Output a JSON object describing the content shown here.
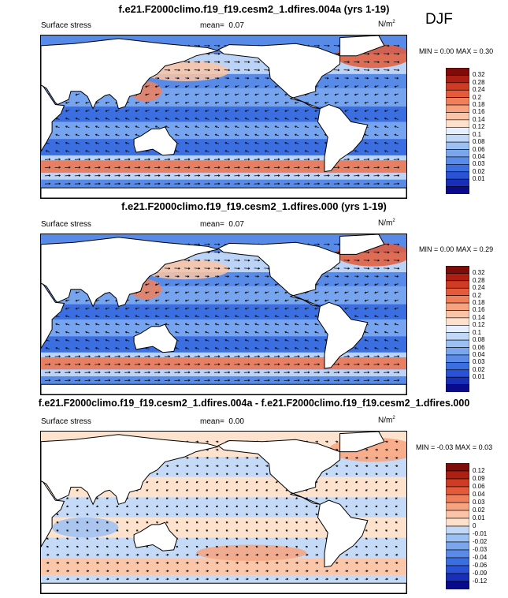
{
  "season": "DJF",
  "colors": {
    "positive_scale": [
      "#0a0a8c",
      "#1a2fb8",
      "#2a52d6",
      "#3b6fe0",
      "#5a8be8",
      "#7aa6ee",
      "#9bc0f3",
      "#c2d8f7",
      "#e6efff",
      "#fde1cc",
      "#fbc4a6",
      "#f7a37f",
      "#f0805c",
      "#e45a3a",
      "#cf3b23",
      "#ad1f13",
      "#7e0c08"
    ],
    "diff_scale": [
      "#0a0a8c",
      "#1a2fb8",
      "#2a52d6",
      "#3b6fe0",
      "#5a8be8",
      "#7aa6ee",
      "#9bc0f3",
      "#c2d8f7",
      "#fde1cc",
      "#fbc4a6",
      "#f7a37f",
      "#f0805c",
      "#e45a3a",
      "#cf3b23",
      "#ad1f13",
      "#7e0c08"
    ]
  },
  "chart_data": [
    {
      "type": "heatmap",
      "title": "f.e21.F2000climo.f19_f19.cesm2_1.dfires.004a (yrs 1-19)",
      "left_label": "Surface stress",
      "mean_label": "mean=",
      "mean_value": "0.07",
      "units": "N/m",
      "units_exp": "2",
      "min_label": "MIN =",
      "min_value": "0.00",
      "max_label": "MAX =",
      "max_value": "0.30",
      "colorbar_ticks": [
        "0.32",
        "0.28",
        "0.24",
        "0.2",
        "0.18",
        "0.16",
        "0.14",
        "0.12",
        "0.1",
        "0.08",
        "0.06",
        "0.04",
        "0.03",
        "0.02",
        "0.01"
      ],
      "overlay": "wind stress vectors"
    },
    {
      "type": "heatmap",
      "title": "f.e21.F2000climo.f19_f19.cesm2_1.dfires.000 (yrs 1-19)",
      "left_label": "Surface stress",
      "mean_label": "mean=",
      "mean_value": "0.07",
      "units": "N/m",
      "units_exp": "2",
      "min_label": "MIN =",
      "min_value": "0.00",
      "max_label": "MAX =",
      "max_value": "0.29",
      "colorbar_ticks": [
        "0.32",
        "0.28",
        "0.24",
        "0.2",
        "0.18",
        "0.16",
        "0.14",
        "0.12",
        "0.1",
        "0.08",
        "0.06",
        "0.04",
        "0.03",
        "0.02",
        "0.01"
      ],
      "overlay": "wind stress vectors"
    },
    {
      "type": "heatmap",
      "title": "f.e21.F2000climo.f19_f19.cesm2_1.dfires.004a - f.e21.F2000climo.f19_f19.cesm2_1.dfires.000",
      "left_label": "Surface stress",
      "mean_label": "mean=",
      "mean_value": "0.00",
      "units": "N/m",
      "units_exp": "2",
      "min_label": "MIN =",
      "min_value": "-0.03",
      "max_label": "MAX =",
      "max_value": "0.03",
      "colorbar_ticks": [
        "0.12",
        "0.09",
        "0.06",
        "0.04",
        "0.03",
        "0.02",
        "0.01",
        "0",
        "-0.01",
        "-0.02",
        "-0.03",
        "-0.04",
        "-0.06",
        "-0.09",
        "-0.12"
      ],
      "overlay": "wind stress difference vectors"
    }
  ]
}
